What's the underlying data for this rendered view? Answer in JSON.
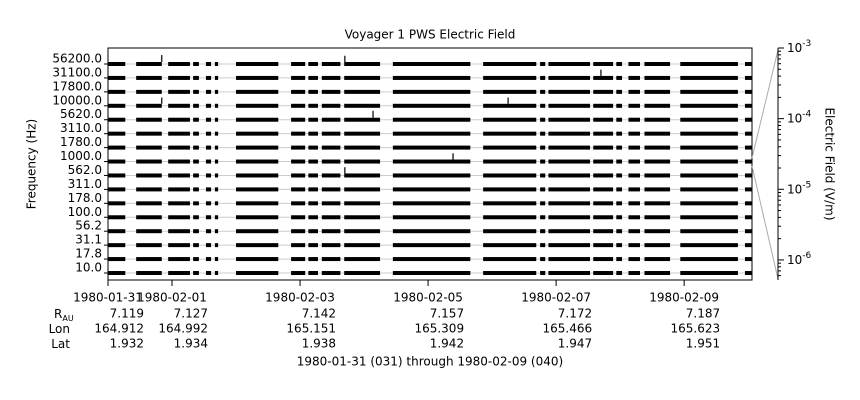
{
  "chart_data": {
    "type": "channel-spectrum",
    "title": "Voyager 1 PWS Electric Field",
    "ylabel": "Frequency (Hz)",
    "y2label": "Electric Field (V/m)",
    "footer": "1980-01-31 (031) through 1980-02-09 (040)",
    "yticks": [
      {
        "value": 10,
        "label": "10.0"
      },
      {
        "value": 17.8,
        "label": "17.8"
      },
      {
        "value": 31.1,
        "label": "31.1"
      },
      {
        "value": 56.2,
        "label": "56.2"
      },
      {
        "value": 100,
        "label": "100.0"
      },
      {
        "value": 178,
        "label": "178.0"
      },
      {
        "value": 311,
        "label": "311.0"
      },
      {
        "value": 562,
        "label": "562.0"
      },
      {
        "value": 1000,
        "label": "1000.0"
      },
      {
        "value": 1780,
        "label": "1780.0"
      },
      {
        "value": 3110,
        "label": "3110.0"
      },
      {
        "value": 5620,
        "label": "5620.0"
      },
      {
        "value": 10000,
        "label": "10000.0"
      },
      {
        "value": 17800,
        "label": "17800.0"
      },
      {
        "value": 31100,
        "label": "31100.0"
      },
      {
        "value": 56200,
        "label": "56200.0"
      }
    ],
    "xlim": [
      0,
      10.06
    ],
    "xticks": [
      {
        "value": 0,
        "label": "1980-01-31"
      },
      {
        "value": 1,
        "label": "1980-02-01"
      },
      {
        "value": 3,
        "label": "1980-02-03"
      },
      {
        "value": 5,
        "label": "1980-02-05"
      },
      {
        "value": 7,
        "label": "1980-02-07"
      },
      {
        "value": 9,
        "label": "1980-02-09"
      }
    ],
    "y2lim": [
      5.2e-07,
      0.001
    ],
    "y2log": true,
    "y2ticks": [
      {
        "value": 0.001,
        "label": "10",
        "exponent": "-3"
      },
      {
        "value": 0.0001,
        "label": "10",
        "exponent": "-4"
      },
      {
        "value": 1e-05,
        "label": "10",
        "exponent": "-5"
      },
      {
        "value": 1e-06,
        "label": "10",
        "exponent": "-6"
      }
    ],
    "ephemeris": [
      {
        "label": "R",
        "subscript": "AU",
        "values": [
          7.119,
          7.127,
          7.142,
          7.157,
          7.172,
          7.187
        ]
      },
      {
        "label": "Lon",
        "values": [
          164.912,
          164.992,
          165.151,
          165.309,
          165.466,
          165.623
        ]
      },
      {
        "label": "Lat",
        "values": [
          1.932,
          1.934,
          1.938,
          1.942,
          1.947,
          1.951
        ]
      }
    ],
    "color": "#000000",
    "grid": true,
    "coverage": [
      [
        0,
        0.27
      ],
      [
        0.44,
        0.84
      ],
      [
        0.94,
        1.28
      ],
      [
        1.33,
        1.42
      ],
      [
        1.53,
        1.61
      ],
      [
        1.67,
        1.72
      ],
      [
        2.0,
        2.66
      ],
      [
        2.86,
        3.08
      ],
      [
        3.13,
        3.28
      ],
      [
        3.34,
        3.63
      ],
      [
        3.69,
        4.25
      ],
      [
        4.45,
        5.66
      ],
      [
        5.86,
        6.69
      ],
      [
        6.75,
        6.83
      ],
      [
        6.88,
        7.53
      ],
      [
        7.58,
        7.89
      ],
      [
        7.94,
        8.03
      ],
      [
        8.13,
        8.31
      ],
      [
        8.38,
        8.78
      ],
      [
        8.94,
        9.84
      ],
      [
        9.95,
        10.06
      ]
    ],
    "spikes": [
      {
        "frequency": 56200,
        "x": 0.84,
        "value": 3e-05
      },
      {
        "frequency": 56200,
        "x": 3.7,
        "value": 2e-05
      },
      {
        "frequency": 31100,
        "x": 7.7,
        "value": 2e-05
      },
      {
        "frequency": 10000,
        "x": 6.25,
        "value": 2e-05
      },
      {
        "frequency": 5620,
        "x": 4.14,
        "value": 3e-05
      },
      {
        "frequency": 1000,
        "x": 5.39,
        "value": 2e-05
      },
      {
        "frequency": 562,
        "x": 3.7,
        "value": 2e-05
      },
      {
        "frequency": 10000,
        "x": 0.84,
        "value": 2e-05
      }
    ]
  }
}
